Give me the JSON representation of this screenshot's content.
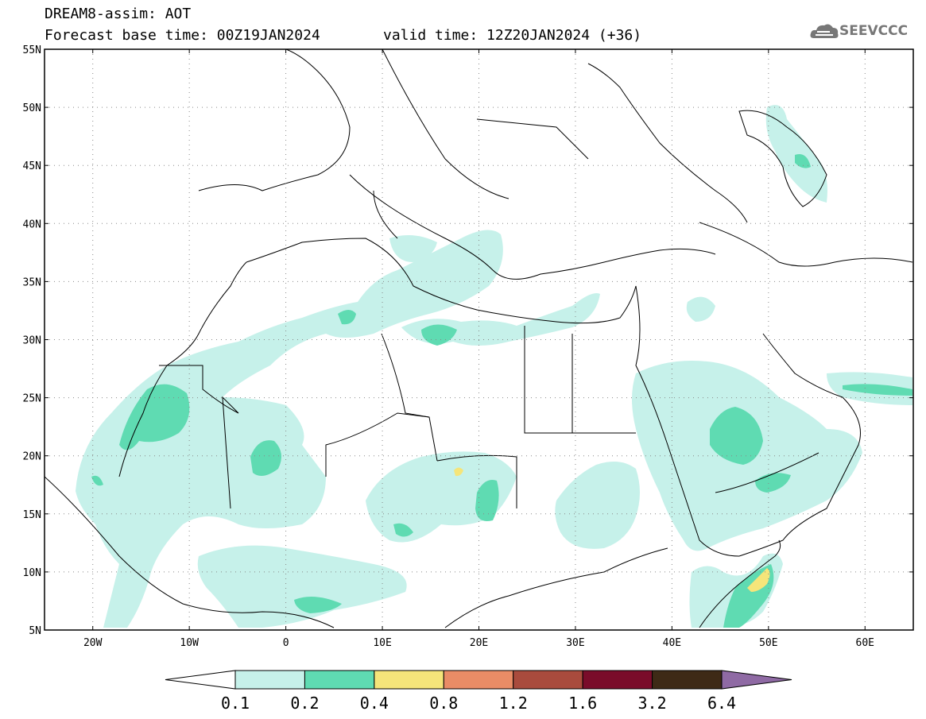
{
  "title": {
    "line1": "DREAM8-assim: AOT",
    "line2": "Forecast base time: 00Z19JAN2024",
    "valid": "valid time: 12Z20JAN2024 (+36)"
  },
  "logo": {
    "text": "SEEVCCC",
    "icon": "cloud-logo-icon",
    "color": "#777777"
  },
  "map": {
    "lon_range": [
      -25,
      65
    ],
    "lat_range": [
      5,
      55
    ],
    "lat_labels": [
      "55N",
      "50N",
      "45N",
      "40N",
      "35N",
      "30N",
      "25N",
      "20N",
      "15N",
      "10N",
      "5N"
    ],
    "lon_labels": [
      "20W",
      "10W",
      "0",
      "10E",
      "20E",
      "30E",
      "40E",
      "50E",
      "60E"
    ],
    "grid": "dotted"
  },
  "legend": {
    "labels": [
      "0.1",
      "0.2",
      "0.4",
      "0.8",
      "1.2",
      "1.6",
      "3.2",
      "6.4"
    ],
    "colors": [
      "#ffffff",
      "#c6f1ea",
      "#5fdbb2",
      "#f5e57a",
      "#e98c66",
      "#a94b3d",
      "#7a0c2a",
      "#3e2a16",
      "#8f6aa4"
    ]
  }
}
